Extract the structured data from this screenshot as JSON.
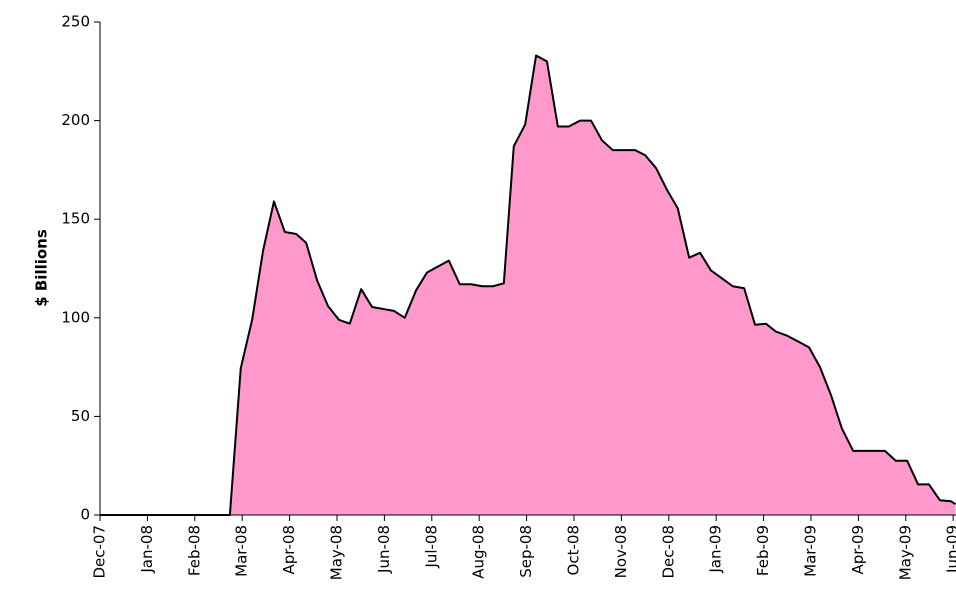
{
  "chart_data": {
    "type": "area",
    "y_label": "$ Billions",
    "color": "#ff99cc",
    "line_color": "#000000",
    "x": [
      0,
      2.74,
      2.97,
      3.21,
      3.44,
      3.67,
      3.9,
      4.14,
      4.35,
      4.58,
      4.81,
      5.04,
      5.27,
      5.51,
      5.74,
      5.97,
      6.2,
      6.43,
      6.67,
      6.9,
      7.13,
      7.36,
      7.59,
      7.83,
      8.06,
      8.29,
      8.52,
      8.73,
      8.97,
      9.2,
      9.43,
      9.66,
      9.89,
      10.13,
      10.36,
      10.59,
      10.82,
      11.05,
      11.29,
      11.5,
      11.73,
      11.96,
      12.19,
      12.43,
      12.66,
      12.89,
      13.12,
      13.35,
      13.59,
      13.82,
      14.05,
      14.26,
      14.49,
      14.73,
      14.96,
      15.19,
      15.42,
      15.65,
      15.89,
      16.12,
      16.35,
      16.56,
      16.79,
      17.03,
      17.26,
      17.49,
      17.72,
      17.95,
      18.05
    ],
    "values": [
      0,
      0,
      74.5,
      99,
      134,
      159,
      143.5,
      142.5,
      138,
      119,
      106,
      99,
      97,
      114.5,
      105.5,
      104.5,
      103.5,
      100,
      114,
      123,
      126,
      129,
      117,
      117,
      116,
      116,
      117.5,
      187,
      198,
      233,
      230,
      197,
      197,
      200,
      200,
      190,
      185,
      185,
      185,
      182.5,
      176,
      165,
      155.5,
      130.5,
      133,
      124,
      120,
      116,
      115,
      96.5,
      97,
      93,
      91,
      88,
      85,
      75,
      61,
      44,
      32.5,
      32.5,
      32.5,
      32.5,
      27.5,
      27.5,
      15.5,
      15.5,
      7.5,
      7,
      5.5
    ],
    "xlim": [
      0,
      18.06
    ],
    "xticks": [
      {
        "value": 0,
        "label": "Dec-07"
      },
      {
        "value": 1,
        "label": "Jan-08"
      },
      {
        "value": 2,
        "label": "Feb-08"
      },
      {
        "value": 3,
        "label": "Mar-08"
      },
      {
        "value": 4,
        "label": "Apr-08"
      },
      {
        "value": 5,
        "label": "May-08"
      },
      {
        "value": 6,
        "label": "Jun-08"
      },
      {
        "value": 7,
        "label": "Jul-08"
      },
      {
        "value": 8,
        "label": "Aug-08"
      },
      {
        "value": 9,
        "label": "Sep-08"
      },
      {
        "value": 10,
        "label": "Oct-08"
      },
      {
        "value": 11,
        "label": "Nov-08"
      },
      {
        "value": 12,
        "label": "Dec-08"
      },
      {
        "value": 13,
        "label": "Jan-09"
      },
      {
        "value": 14,
        "label": "Feb-09"
      },
      {
        "value": 15,
        "label": "Mar-09"
      },
      {
        "value": 16,
        "label": "Apr-09"
      },
      {
        "value": 17,
        "label": "May-09"
      },
      {
        "value": 18,
        "label": "Jun-09"
      }
    ],
    "ylim": [
      0,
      250
    ],
    "yticks": [
      0,
      50,
      100,
      150,
      200,
      250
    ],
    "grid": false
  }
}
